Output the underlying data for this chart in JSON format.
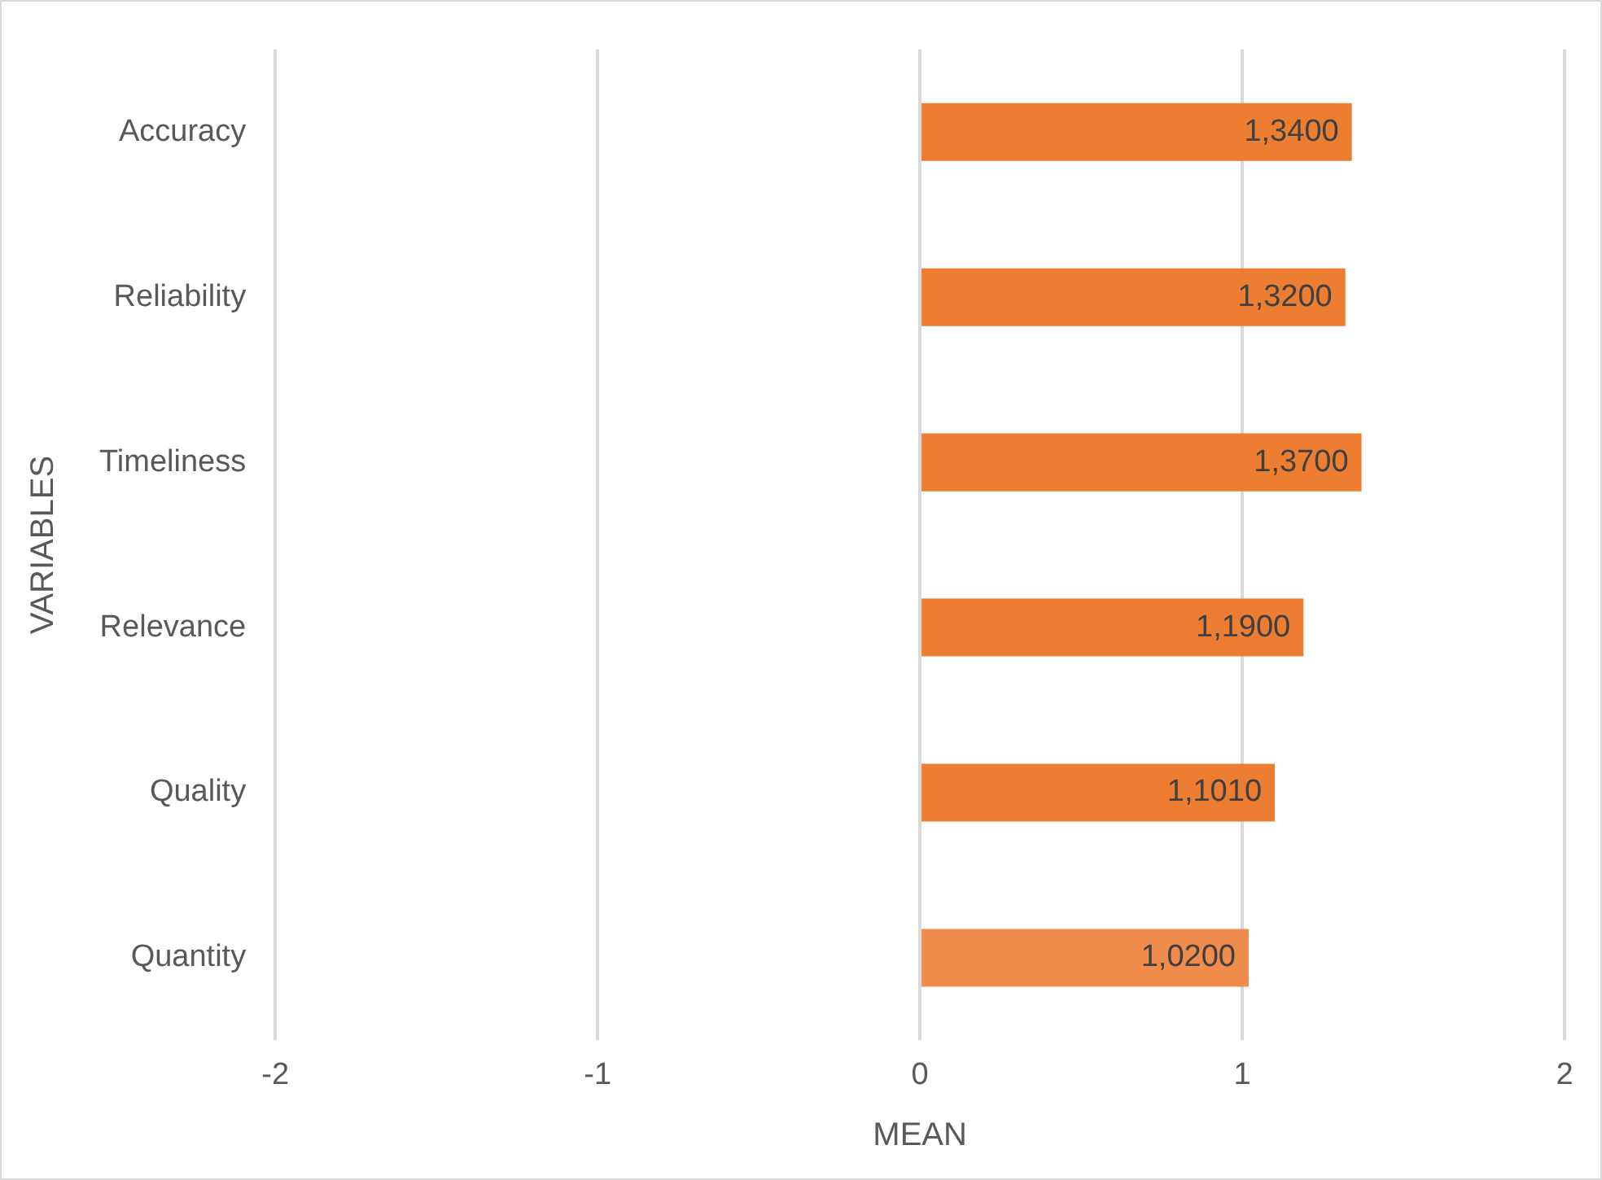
{
  "chart_data": {
    "type": "bar",
    "orientation": "horizontal",
    "xlabel": "MEAN",
    "ylabel": "VARIABLES",
    "categories": [
      "Accuracy",
      "Reliability",
      "Timeliness",
      "Relevance",
      "Quality",
      "Quantity"
    ],
    "values": [
      1.34,
      1.32,
      1.37,
      1.19,
      1.101,
      1.02
    ],
    "value_labels": [
      "1,3400",
      "1,3200",
      "1,3700",
      "1,1900",
      "1,1010",
      "1,0200"
    ],
    "colors": [
      "#ed7d31",
      "#ed7d31",
      "#ed7d31",
      "#ed7d31",
      "#ed7d31",
      "#f08c4c"
    ],
    "xlim": [
      -2,
      2
    ],
    "xticks": [
      -2,
      -1,
      0,
      1,
      2
    ],
    "grid": "x",
    "legend": false
  }
}
